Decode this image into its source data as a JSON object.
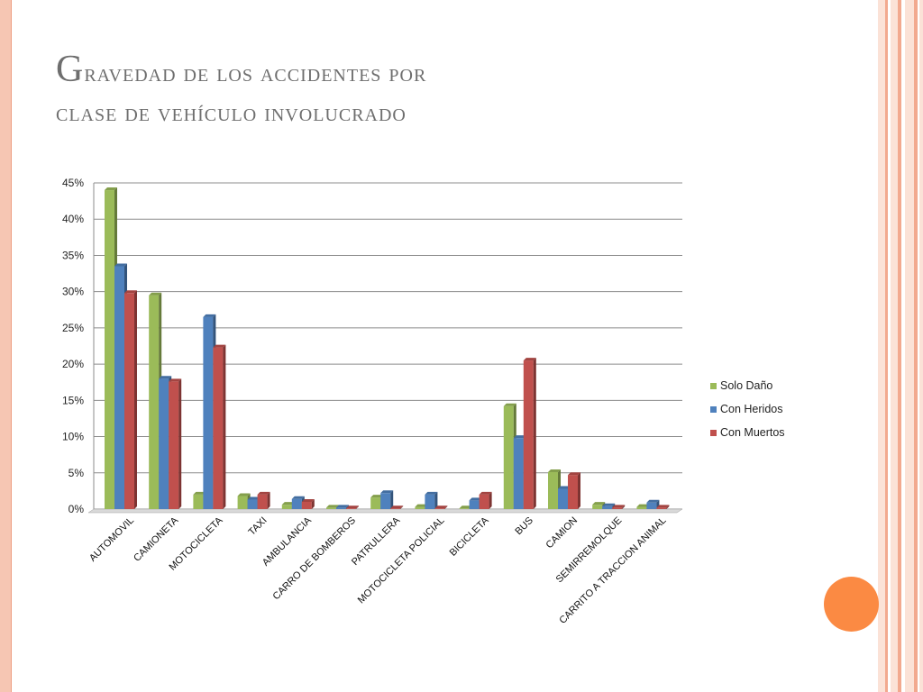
{
  "slide": {
    "title_line1": "Gravedad de los accidentes por",
    "title_line2": "clase de vehículo involucrado"
  },
  "colors": {
    "solo_dano": "#9bbb59",
    "con_heridos": "#4f81bd",
    "con_muertos": "#c0504d",
    "accent_orange": "#fb8a43",
    "frame_peach": "#f6c6b3"
  },
  "chart_data": {
    "type": "bar",
    "title": "",
    "xlabel": "",
    "ylabel": "",
    "ylim": [
      0,
      45
    ],
    "yticks": [
      "0%",
      "5%",
      "10%",
      "15%",
      "20%",
      "25%",
      "30%",
      "35%",
      "40%",
      "45%"
    ],
    "grid": true,
    "legend_position": "right",
    "categories": [
      "AUTOMOVIL",
      "CAMIONETA",
      "MOTOCICLETA",
      "TAXI",
      "AMBULANCIA",
      "CARRO DE BOMBEROS",
      "PATRULLERA",
      "MOTOCICLETA POLICIAL",
      "BICICLETA",
      "BUS",
      "CAMION",
      "SEMIRREMOLQUE",
      "CARRITO A TRACCION ANIMAL"
    ],
    "series": [
      {
        "name": "Solo Daño",
        "values": [
          44.0,
          29.5,
          2.0,
          1.8,
          0.6,
          0.2,
          1.6,
          0.3,
          0.1,
          14.2,
          5.1,
          0.6,
          0.3
        ]
      },
      {
        "name": "Con Heridos",
        "values": [
          33.5,
          18.0,
          26.5,
          1.3,
          1.4,
          0.2,
          2.2,
          2.0,
          1.2,
          9.8,
          2.8,
          0.4,
          0.9
        ]
      },
      {
        "name": "Con Muertos",
        "values": [
          29.8,
          17.6,
          22.3,
          2.0,
          1.0,
          0.1,
          0.1,
          0.1,
          2.0,
          20.5,
          4.7,
          0.2,
          0.2
        ]
      }
    ]
  }
}
